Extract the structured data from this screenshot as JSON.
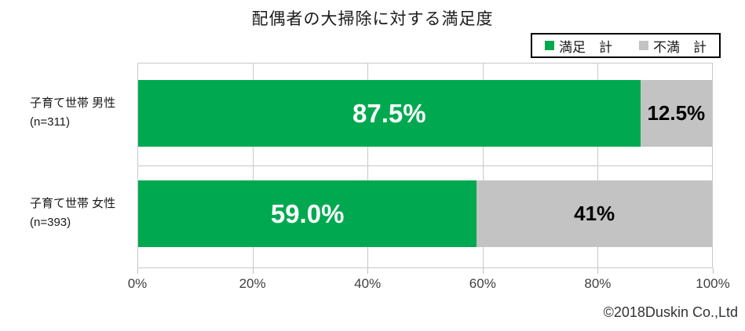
{
  "chart_data": {
    "type": "bar",
    "orientation": "horizontal",
    "stacked": true,
    "title": "配偶者の大掃除に対する満足度",
    "categories": [
      {
        "label": "子育て世帯 男性",
        "n": "(n=311)"
      },
      {
        "label": "子育て世帯 女性",
        "n": "(n=393)"
      }
    ],
    "series": [
      {
        "name": "満足　計",
        "color": "#00a94f",
        "values": [
          87.5,
          59.0
        ],
        "value_labels": [
          "87.5%",
          "59.0%"
        ]
      },
      {
        "name": "不満　計",
        "color": "#c3c3c3",
        "values": [
          12.5,
          41.0
        ],
        "value_labels": [
          "12.5%",
          "41%"
        ]
      }
    ],
    "xlabel": "",
    "ylabel": "",
    "xlim": [
      0,
      100
    ],
    "x_ticks": [
      "0%",
      "20%",
      "40%",
      "60%",
      "80%",
      "100%"
    ],
    "grid": true,
    "legend_position": "top-right"
  },
  "footer": {
    "copyright": "©2018Duskin Co.,Ltd"
  }
}
